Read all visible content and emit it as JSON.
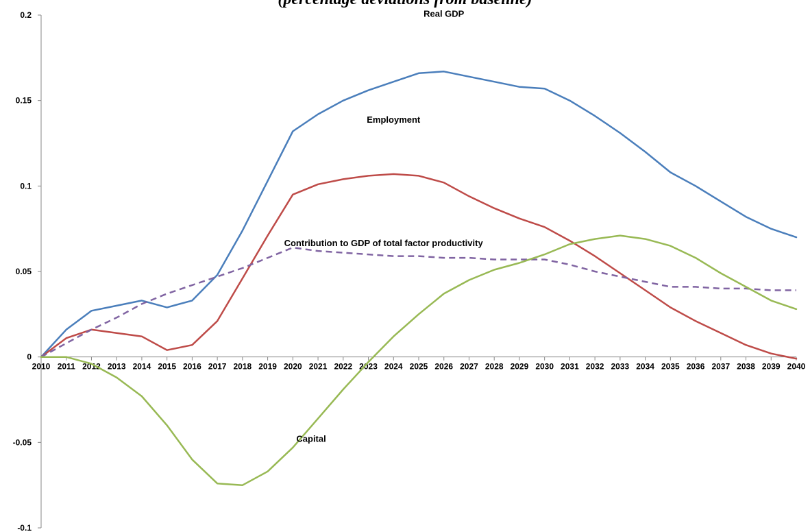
{
  "chart_data": {
    "type": "line",
    "title": "(percentage deviations from baseline)",
    "xlabel": "",
    "ylabel": "",
    "ylim": [
      -0.1,
      0.2
    ],
    "yticks": [
      -0.1,
      -0.05,
      0,
      0.05,
      0.1,
      0.15,
      0.2
    ],
    "ytick_labels": [
      "-0.1",
      "-0.05",
      "0",
      "0.05",
      "0.1",
      "0.15",
      "0.2"
    ],
    "grid": false,
    "legend": "none",
    "x": [
      "2010",
      "2011",
      "2012",
      "2013",
      "2014",
      "2015",
      "2016",
      "2017",
      "2018",
      "2019",
      "2020",
      "2021",
      "2022",
      "2023",
      "2024",
      "2025",
      "2026",
      "2027",
      "2028",
      "2029",
      "2030",
      "2031",
      "2032",
      "2033",
      "2034",
      "2035",
      "2036",
      "2037",
      "2038",
      "2039",
      "2040"
    ],
    "series": [
      {
        "name": "Real GDP",
        "color": "#4a7ebb",
        "dashed": false,
        "values": [
          0,
          0.016,
          0.027,
          0.03,
          0.033,
          0.029,
          0.033,
          0.048,
          0.074,
          0.103,
          0.132,
          0.142,
          0.15,
          0.156,
          0.161,
          0.166,
          0.167,
          0.164,
          0.161,
          0.158,
          0.157,
          0.15,
          0.141,
          0.131,
          0.12,
          0.108,
          0.1,
          0.091,
          0.082,
          0.075,
          0.07
        ]
      },
      {
        "name": "Employment",
        "color": "#be4b48",
        "dashed": false,
        "values": [
          0,
          0.011,
          0.016,
          0.014,
          0.012,
          0.004,
          0.007,
          0.021,
          0.046,
          0.071,
          0.095,
          0.101,
          0.104,
          0.106,
          0.107,
          0.106,
          0.102,
          0.094,
          0.087,
          0.081,
          0.076,
          0.068,
          0.059,
          0.049,
          0.039,
          0.029,
          0.021,
          0.014,
          0.007,
          0.002,
          -0.001
        ]
      },
      {
        "name": "Contribution to GDP of total factor productivity",
        "color": "#8064a2",
        "dashed": true,
        "values": [
          0,
          0.008,
          0.016,
          0.023,
          0.031,
          0.037,
          0.042,
          0.047,
          0.052,
          0.058,
          0.064,
          0.062,
          0.061,
          0.06,
          0.059,
          0.059,
          0.058,
          0.058,
          0.057,
          0.057,
          0.057,
          0.054,
          0.05,
          0.047,
          0.044,
          0.041,
          0.041,
          0.04,
          0.04,
          0.039,
          0.039
        ]
      },
      {
        "name": "Capital",
        "color": "#98b954",
        "dashed": false,
        "values": [
          0,
          0.0,
          -0.004,
          -0.012,
          -0.023,
          -0.04,
          -0.06,
          -0.074,
          -0.075,
          -0.067,
          -0.053,
          -0.036,
          -0.019,
          -0.003,
          0.012,
          0.025,
          0.037,
          0.045,
          0.051,
          0.055,
          0.06,
          0.066,
          0.069,
          0.071,
          0.069,
          0.065,
          0.058,
          0.049,
          0.041,
          0.033,
          0.028
        ]
      }
    ],
    "annotations": [
      {
        "text": "Real GDP",
        "series": "Real GDP"
      },
      {
        "text": "Employment",
        "series": "Employment"
      },
      {
        "text": "Contribution to GDP of total factor productivity",
        "series": "Contribution to GDP of total factor productivity"
      },
      {
        "text": "Capital",
        "series": "Capital"
      }
    ]
  }
}
